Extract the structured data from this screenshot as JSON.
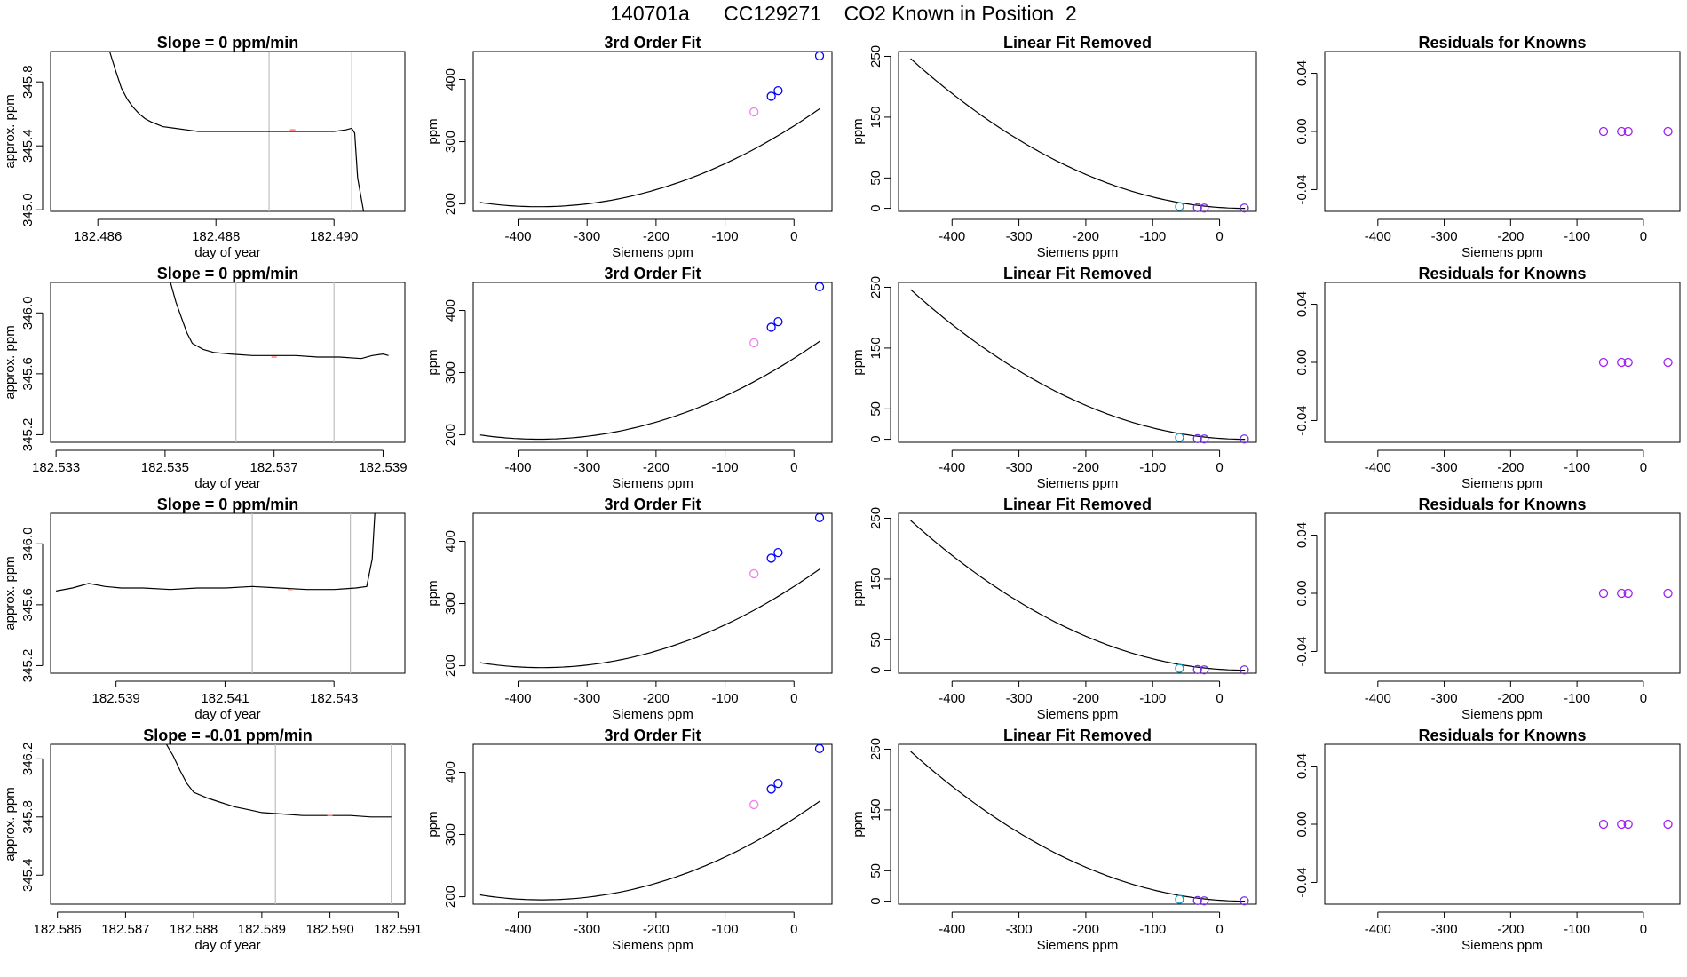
{
  "figure_title": "140701a      CC129271    CO2 Known in Position  2",
  "colors": {
    "line": "#000000",
    "axis": "#000000",
    "vline": "#bebebe",
    "fit_point": "#0000ff",
    "fit_point_low": "#ee82ee",
    "resid_cyan": "#00a0c8",
    "resid_purple": "#7b2fe0",
    "known_point": "#a020f0",
    "trace_mark": "#ff7f7f"
  },
  "chart_data": [
    {
      "type": "line",
      "row": 0,
      "col": 0,
      "title": "Slope =  0  ppm/min",
      "xlabel": "day of year",
      "ylabel": "approx. ppm",
      "xlim": [
        182.4852,
        182.4912
      ],
      "ylim": [
        344.99,
        345.99
      ],
      "xticks": [
        182.486,
        182.488,
        182.49
      ],
      "xtick_labels": [
        "182.486",
        "182.488",
        "182.490"
      ],
      "yticks": [
        345.0,
        345.4,
        345.8
      ],
      "ytick_labels": [
        "345.0",
        "345.4",
        "345.8"
      ],
      "vlines": [
        182.4889,
        182.4903
      ],
      "x": [
        182.4862,
        182.4863,
        182.4864,
        182.4865,
        182.4866,
        182.4867,
        182.4868,
        182.4869,
        182.4871,
        182.4873,
        182.4875,
        182.4877,
        182.488,
        182.4884,
        182.4888,
        182.4892,
        182.4896,
        182.49,
        182.4902,
        182.4903,
        182.49035,
        182.4904,
        182.4905
      ],
      "y": [
        345.99,
        345.87,
        345.76,
        345.69,
        345.64,
        345.6,
        345.57,
        345.55,
        345.52,
        345.51,
        345.5,
        345.49,
        345.49,
        345.49,
        345.49,
        345.49,
        345.49,
        345.49,
        345.5,
        345.51,
        345.48,
        345.2,
        344.99
      ],
      "marks": [
        [
          182.4893,
          345.5
        ]
      ]
    },
    {
      "type": "line",
      "row": 1,
      "col": 0,
      "title": "Slope =  0  ppm/min",
      "xlabel": "day of year",
      "ylabel": "approx. ppm",
      "xlim": [
        182.5329,
        182.5394
      ],
      "ylim": [
        345.15,
        346.2
      ],
      "xticks": [
        182.533,
        182.535,
        182.537,
        182.539
      ],
      "xtick_labels": [
        "182.533",
        "182.535",
        "182.537",
        "182.539"
      ],
      "yticks": [
        345.2,
        345.6,
        346.0
      ],
      "ytick_labels": [
        "345.2",
        "345.6",
        "346.0"
      ],
      "vlines": [
        182.5363,
        182.5381
      ],
      "x": [
        182.5351,
        182.5352,
        182.5353,
        182.5354,
        182.5355,
        182.5357,
        182.5359,
        182.5362,
        182.5366,
        182.537,
        182.5374,
        182.5378,
        182.5382,
        182.5386,
        182.5388,
        182.539,
        182.5391
      ],
      "y": [
        346.2,
        346.07,
        345.97,
        345.87,
        345.8,
        345.76,
        345.74,
        345.73,
        345.72,
        345.72,
        345.72,
        345.71,
        345.71,
        345.7,
        345.72,
        345.73,
        345.72
      ],
      "marks": [
        [
          182.537,
          345.71
        ]
      ]
    },
    {
      "type": "line",
      "row": 2,
      "col": 0,
      "title": "Slope =  0  ppm/min",
      "xlabel": "day of year",
      "ylabel": "approx. ppm",
      "xlim": [
        182.5378,
        182.5443
      ],
      "ylim": [
        345.15,
        346.2
      ],
      "xticks": [
        182.539,
        182.541,
        182.543
      ],
      "xtick_labels": [
        "182.539",
        "182.541",
        "182.543"
      ],
      "yticks": [
        345.2,
        345.6,
        346.0
      ],
      "ytick_labels": [
        "345.2",
        "345.6",
        "346.0"
      ],
      "vlines": [
        182.5415,
        182.5433
      ],
      "x": [
        182.5379,
        182.5382,
        182.5385,
        182.5388,
        182.5391,
        182.5395,
        182.54,
        182.5405,
        182.541,
        182.5415,
        182.542,
        182.5425,
        182.543,
        182.5434,
        182.5436,
        182.5437,
        182.54375
      ],
      "y": [
        345.69,
        345.71,
        345.74,
        345.72,
        345.71,
        345.71,
        345.7,
        345.71,
        345.71,
        345.72,
        345.71,
        345.7,
        345.7,
        345.71,
        345.72,
        345.9,
        346.2
      ],
      "marks": [
        [
          182.5422,
          345.7
        ]
      ]
    },
    {
      "type": "line",
      "row": 3,
      "col": 0,
      "title": "Slope =  -0.01  ppm/min",
      "xlabel": "day of year",
      "ylabel": "approx. ppm",
      "xlim": [
        182.5859,
        182.5911
      ],
      "ylim": [
        345.2,
        346.3
      ],
      "xticks": [
        182.586,
        182.587,
        182.588,
        182.589,
        182.59,
        182.591
      ],
      "xtick_labels": [
        "182.586",
        "182.587",
        "182.588",
        "182.589",
        "182.590",
        "182.591"
      ],
      "yticks": [
        345.4,
        345.8,
        346.2
      ],
      "ytick_labels": [
        "345.4",
        "345.8",
        "346.2"
      ],
      "vlines": [
        182.5892,
        182.5909
      ],
      "x": [
        182.5876,
        182.5877,
        182.5878,
        182.5879,
        182.588,
        182.5882,
        182.5884,
        182.5886,
        182.5888,
        182.589,
        182.5893,
        182.5896,
        182.59,
        182.5903,
        182.5906,
        182.5908,
        182.5909
      ],
      "y": [
        346.3,
        346.22,
        346.12,
        346.03,
        345.97,
        345.93,
        345.9,
        345.87,
        345.85,
        345.83,
        345.82,
        345.81,
        345.81,
        345.81,
        345.8,
        345.8,
        345.8
      ],
      "marks": [
        [
          182.59,
          345.81
        ]
      ]
    },
    {
      "type": "line",
      "row": 0,
      "col": 1,
      "title": "3rd Order Fit",
      "xlabel": "Siemens ppm",
      "ylabel": "ppm",
      "xlim": [
        -465,
        55
      ],
      "ylim": [
        188,
        445
      ],
      "xticks": [
        -400,
        -300,
        -200,
        -100,
        0
      ],
      "xtick_labels": [
        "-400",
        "-300",
        "-200",
        "-100",
        "0"
      ],
      "yticks": [
        200,
        300,
        400
      ],
      "ytick_labels": [
        "200",
        "300",
        "400"
      ],
      "curve": {
        "x0": -455,
        "x1": 38,
        "xv": -370,
        "yv": 195.5,
        "a": 0.00095
      },
      "points": [
        {
          "x": -58,
          "y": 348,
          "color": "#ee82ee"
        },
        {
          "x": -33,
          "y": 373,
          "color": "#0000ff"
        },
        {
          "x": -23,
          "y": 382,
          "color": "#0000ff"
        },
        {
          "x": 37,
          "y": 438,
          "color": "#0000ff"
        }
      ]
    },
    {
      "type": "line",
      "row": 1,
      "col": 1,
      "title": "3rd Order Fit",
      "xlabel": "Siemens ppm",
      "ylabel": "ppm",
      "xlim": [
        -465,
        55
      ],
      "ylim": [
        188,
        445
      ],
      "xticks": [
        -400,
        -300,
        -200,
        -100,
        0
      ],
      "xtick_labels": [
        "-400",
        "-300",
        "-200",
        "-100",
        "0"
      ],
      "yticks": [
        200,
        300,
        400
      ],
      "ytick_labels": [
        "200",
        "300",
        "400"
      ],
      "curve": {
        "x0": -455,
        "x1": 38,
        "xv": -370,
        "yv": 193,
        "a": 0.00095
      },
      "points": [
        {
          "x": -58,
          "y": 348,
          "color": "#ee82ee"
        },
        {
          "x": -33,
          "y": 373,
          "color": "#0000ff"
        },
        {
          "x": -23,
          "y": 382,
          "color": "#0000ff"
        },
        {
          "x": 37,
          "y": 438,
          "color": "#0000ff"
        }
      ]
    },
    {
      "type": "line",
      "row": 2,
      "col": 1,
      "title": "3rd Order Fit",
      "xlabel": "Siemens ppm",
      "ylabel": "ppm",
      "xlim": [
        -465,
        55
      ],
      "ylim": [
        188,
        445
      ],
      "xticks": [
        -400,
        -300,
        -200,
        -100,
        0
      ],
      "xtick_labels": [
        "-400",
        "-300",
        "-200",
        "-100",
        "0"
      ],
      "yticks": [
        200,
        300,
        400
      ],
      "ytick_labels": [
        "200",
        "300",
        "400"
      ],
      "curve": {
        "x0": -455,
        "x1": 38,
        "xv": -365,
        "yv": 197,
        "a": 0.00098
      },
      "points": [
        {
          "x": -58,
          "y": 348,
          "color": "#ee82ee"
        },
        {
          "x": -33,
          "y": 373,
          "color": "#0000ff"
        },
        {
          "x": -23,
          "y": 382,
          "color": "#0000ff"
        },
        {
          "x": 37,
          "y": 438,
          "color": "#0000ff"
        }
      ]
    },
    {
      "type": "line",
      "row": 3,
      "col": 1,
      "title": "3rd Order Fit",
      "xlabel": "Siemens ppm",
      "ylabel": "ppm",
      "xlim": [
        -465,
        55
      ],
      "ylim": [
        188,
        445
      ],
      "xticks": [
        -400,
        -300,
        -200,
        -100,
        0
      ],
      "xtick_labels": [
        "-400",
        "-300",
        "-200",
        "-100",
        "0"
      ],
      "yticks": [
        200,
        300,
        400
      ],
      "ytick_labels": [
        "200",
        "300",
        "400"
      ],
      "curve": {
        "x0": -455,
        "x1": 38,
        "xv": -365,
        "yv": 195,
        "a": 0.00098
      },
      "points": [
        {
          "x": -58,
          "y": 348,
          "color": "#ee82ee"
        },
        {
          "x": -33,
          "y": 373,
          "color": "#0000ff"
        },
        {
          "x": -23,
          "y": 382,
          "color": "#0000ff"
        },
        {
          "x": 37,
          "y": 438,
          "color": "#0000ff"
        }
      ]
    },
    {
      "type": "line",
      "row": 0,
      "col": 2,
      "title": "Linear Fit Removed",
      "xlabel": "Siemens ppm",
      "ylabel": "ppm",
      "xlim": [
        -480,
        55
      ],
      "ylim": [
        -5,
        258
      ],
      "xticks": [
        -400,
        -300,
        -200,
        -100,
        0
      ],
      "xtick_labels": [
        "-400",
        "-300",
        "-200",
        "-100",
        "0"
      ],
      "yticks": [
        0,
        50,
        150,
        250
      ],
      "ytick_labels": [
        "0",
        "50",
        "150",
        "250"
      ],
      "curve": {
        "x0": -462,
        "x1": 38,
        "xv": 38,
        "yv": 0,
        "a": 0.000985
      },
      "points": [
        {
          "x": -60,
          "y": 3,
          "color": "#00a0c8"
        },
        {
          "x": -33,
          "y": 1,
          "color": "#7b2fe0"
        },
        {
          "x": -23,
          "y": 0.5,
          "color": "#7b2fe0"
        },
        {
          "x": 37,
          "y": 0.5,
          "color": "#7b2fe0"
        }
      ]
    },
    {
      "type": "line",
      "row": 1,
      "col": 2,
      "title": "Linear Fit Removed",
      "xlabel": "Siemens ppm",
      "ylabel": "ppm",
      "xlim": [
        -480,
        55
      ],
      "ylim": [
        -5,
        258
      ],
      "xticks": [
        -400,
        -300,
        -200,
        -100,
        0
      ],
      "xtick_labels": [
        "-400",
        "-300",
        "-200",
        "-100",
        "0"
      ],
      "yticks": [
        0,
        50,
        150,
        250
      ],
      "ytick_labels": [
        "0",
        "50",
        "150",
        "250"
      ],
      "curve": {
        "x0": -462,
        "x1": 38,
        "xv": 38,
        "yv": 0,
        "a": 0.000985
      },
      "points": [
        {
          "x": -60,
          "y": 3,
          "color": "#00a0c8"
        },
        {
          "x": -33,
          "y": 1,
          "color": "#7b2fe0"
        },
        {
          "x": -23,
          "y": 0.5,
          "color": "#7b2fe0"
        },
        {
          "x": 37,
          "y": 0.5,
          "color": "#7b2fe0"
        }
      ]
    },
    {
      "type": "line",
      "row": 2,
      "col": 2,
      "title": "Linear Fit Removed",
      "xlabel": "Siemens ppm",
      "ylabel": "ppm",
      "xlim": [
        -480,
        55
      ],
      "ylim": [
        -5,
        258
      ],
      "xticks": [
        -400,
        -300,
        -200,
        -100,
        0
      ],
      "xtick_labels": [
        "-400",
        "-300",
        "-200",
        "-100",
        "0"
      ],
      "yticks": [
        0,
        50,
        150,
        250
      ],
      "ytick_labels": [
        "0",
        "50",
        "150",
        "250"
      ],
      "curve": {
        "x0": -462,
        "x1": 38,
        "xv": 38,
        "yv": 0,
        "a": 0.000985
      },
      "points": [
        {
          "x": -60,
          "y": 3,
          "color": "#00a0c8"
        },
        {
          "x": -33,
          "y": 1,
          "color": "#7b2fe0"
        },
        {
          "x": -23,
          "y": 0.5,
          "color": "#7b2fe0"
        },
        {
          "x": 37,
          "y": 0.5,
          "color": "#7b2fe0"
        }
      ]
    },
    {
      "type": "line",
      "row": 3,
      "col": 2,
      "title": "Linear Fit Removed",
      "xlabel": "Siemens ppm",
      "ylabel": "ppm",
      "xlim": [
        -480,
        55
      ],
      "ylim": [
        -5,
        258
      ],
      "xticks": [
        -400,
        -300,
        -200,
        -100,
        0
      ],
      "xtick_labels": [
        "-400",
        "-300",
        "-200",
        "-100",
        "0"
      ],
      "yticks": [
        0,
        50,
        150,
        250
      ],
      "ytick_labels": [
        "0",
        "50",
        "150",
        "250"
      ],
      "curve": {
        "x0": -462,
        "x1": 38,
        "xv": 38,
        "yv": 0,
        "a": 0.000985
      },
      "points": [
        {
          "x": -60,
          "y": 3,
          "color": "#00a0c8"
        },
        {
          "x": -33,
          "y": 1,
          "color": "#7b2fe0"
        },
        {
          "x": -23,
          "y": 0.5,
          "color": "#7b2fe0"
        },
        {
          "x": 37,
          "y": 0.5,
          "color": "#7b2fe0"
        }
      ]
    },
    {
      "type": "scatter",
      "row": 0,
      "col": 3,
      "title": "Residuals for Knowns",
      "xlabel": "Siemens ppm",
      "ylabel": "",
      "xlim": [
        -480,
        55
      ],
      "ylim": [
        -0.055,
        0.055
      ],
      "xticks": [
        -400,
        -300,
        -200,
        -100,
        0
      ],
      "xtick_labels": [
        "-400",
        "-300",
        "-200",
        "-100",
        "0"
      ],
      "yticks": [
        -0.04,
        0.0,
        0.04
      ],
      "ytick_labels": [
        "-0.04",
        "0.00",
        "0.04"
      ],
      "points": [
        {
          "x": -60,
          "y": 0,
          "color": "#a020f0"
        },
        {
          "x": -33,
          "y": 0,
          "color": "#a020f0"
        },
        {
          "x": -23,
          "y": 0,
          "color": "#a020f0"
        },
        {
          "x": 37,
          "y": 0,
          "color": "#a020f0"
        }
      ]
    },
    {
      "type": "scatter",
      "row": 1,
      "col": 3,
      "title": "Residuals for Knowns",
      "xlabel": "Siemens ppm",
      "ylabel": "",
      "xlim": [
        -480,
        55
      ],
      "ylim": [
        -0.055,
        0.055
      ],
      "xticks": [
        -400,
        -300,
        -200,
        -100,
        0
      ],
      "xtick_labels": [
        "-400",
        "-300",
        "-200",
        "-100",
        "0"
      ],
      "yticks": [
        -0.04,
        0.0,
        0.04
      ],
      "ytick_labels": [
        "-0.04",
        "0.00",
        "0.04"
      ],
      "points": [
        {
          "x": -60,
          "y": 0,
          "color": "#a020f0"
        },
        {
          "x": -33,
          "y": 0,
          "color": "#a020f0"
        },
        {
          "x": -23,
          "y": 0,
          "color": "#a020f0"
        },
        {
          "x": 37,
          "y": 0,
          "color": "#a020f0"
        }
      ]
    },
    {
      "type": "scatter",
      "row": 2,
      "col": 3,
      "title": "Residuals for Knowns",
      "xlabel": "Siemens ppm",
      "ylabel": "",
      "xlim": [
        -480,
        55
      ],
      "ylim": [
        -0.055,
        0.055
      ],
      "xticks": [
        -400,
        -300,
        -200,
        -100,
        0
      ],
      "xtick_labels": [
        "-400",
        "-300",
        "-200",
        "-100",
        "0"
      ],
      "yticks": [
        -0.04,
        0.0,
        0.04
      ],
      "ytick_labels": [
        "-0.04",
        "0.00",
        "0.04"
      ],
      "points": [
        {
          "x": -60,
          "y": 0,
          "color": "#a020f0"
        },
        {
          "x": -33,
          "y": 0,
          "color": "#a020f0"
        },
        {
          "x": -23,
          "y": 0,
          "color": "#a020f0"
        },
        {
          "x": 37,
          "y": 0,
          "color": "#a020f0"
        }
      ]
    },
    {
      "type": "scatter",
      "row": 3,
      "col": 3,
      "title": "Residuals for Knowns",
      "xlabel": "Siemens ppm",
      "ylabel": "",
      "xlim": [
        -480,
        55
      ],
      "ylim": [
        -0.055,
        0.055
      ],
      "xticks": [
        -400,
        -300,
        -200,
        -100,
        0
      ],
      "xtick_labels": [
        "-400",
        "-300",
        "-200",
        "-100",
        "0"
      ],
      "yticks": [
        -0.04,
        0.0,
        0.04
      ],
      "ytick_labels": [
        "-0.04",
        "0.00",
        "0.04"
      ],
      "points": [
        {
          "x": -60,
          "y": 0,
          "color": "#a020f0"
        },
        {
          "x": -33,
          "y": 0,
          "color": "#a020f0"
        },
        {
          "x": -23,
          "y": 0,
          "color": "#a020f0"
        },
        {
          "x": 37,
          "y": 0,
          "color": "#a020f0"
        }
      ]
    }
  ]
}
